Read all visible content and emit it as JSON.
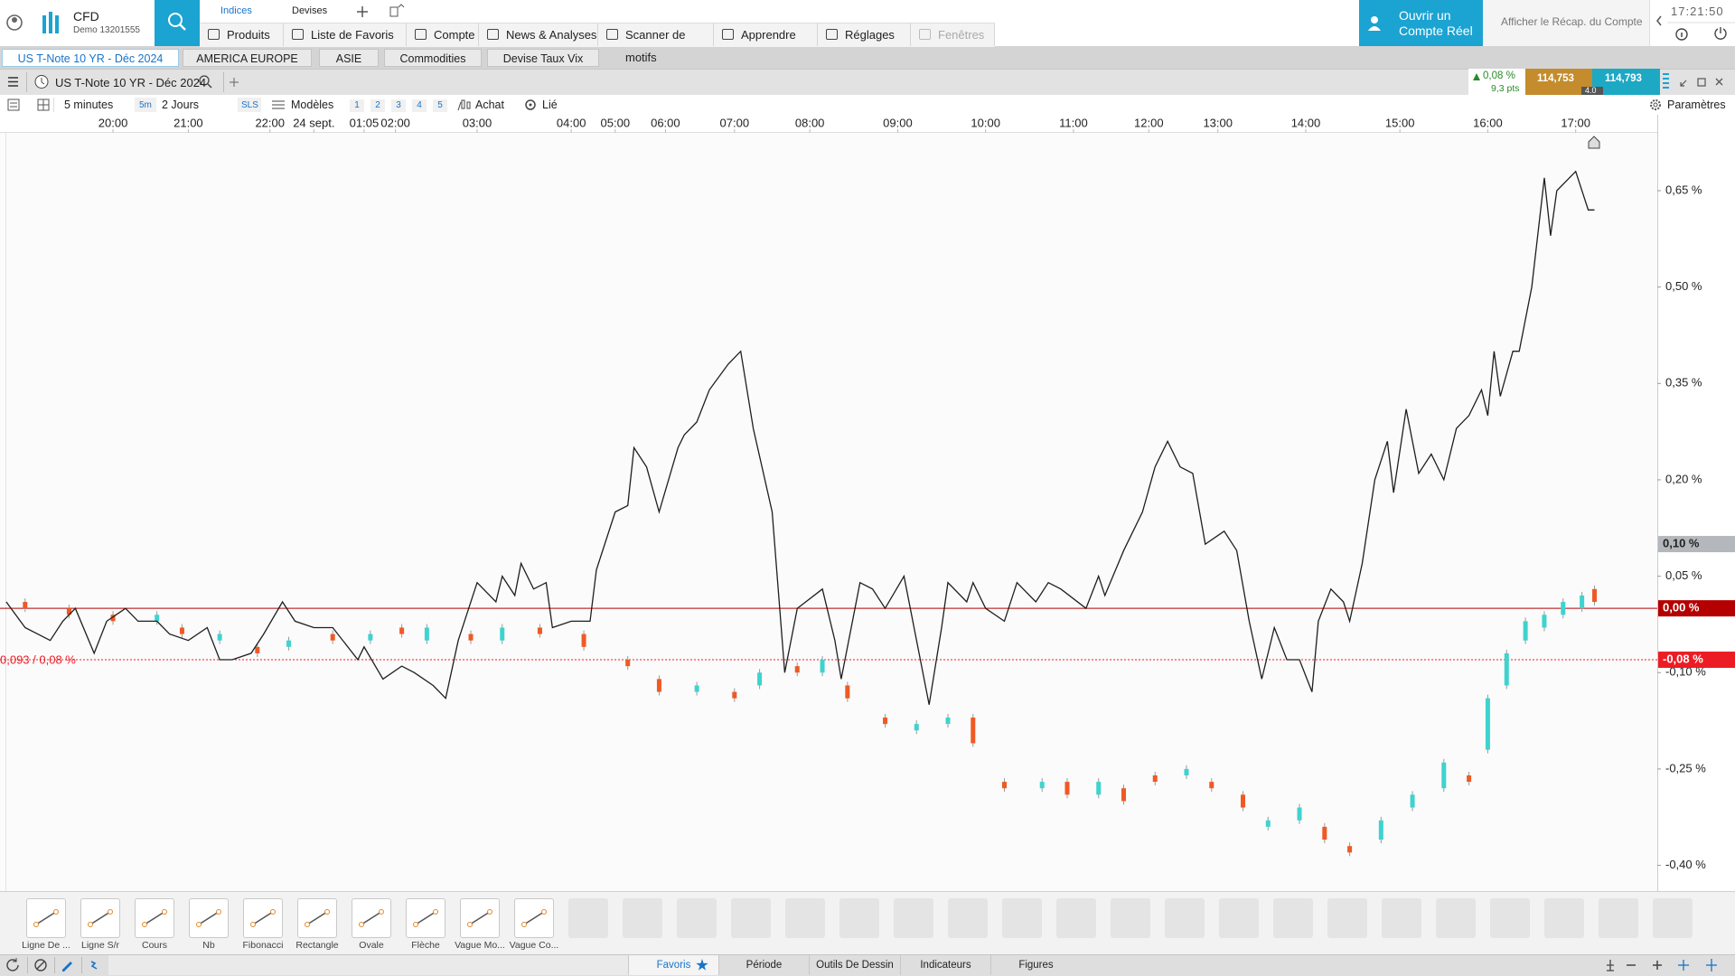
{
  "header": {
    "brand": "CFD",
    "account": "Demo 13201555",
    "tabs": [
      "Indices",
      "Devises"
    ],
    "menu": [
      "Produits",
      "Liste de Favoris",
      "Compte",
      "News & Analyses",
      "Scanner de motifs",
      "Apprendre",
      "Réglages",
      "Fenêtres"
    ],
    "open_account": [
      "Ouvrir un",
      "Compte Réel"
    ],
    "summary": "Afficher le Récap. du Compte",
    "clock": "17:21:50"
  },
  "workspace_tabs": [
    "US T-Note 10 YR - Déc 2024",
    "AMERICA EUROPE",
    "ASIE",
    "Commodities",
    "Devise Taux Vix"
  ],
  "instrument": {
    "name": "US T-Note 10 YR - Déc 2024",
    "change": "0,08 %",
    "change_pts": "9,3 pts",
    "bid": "114,753",
    "ask": "114,793",
    "spread": "4.0"
  },
  "toolbar": {
    "interval": "5 minutes",
    "interval_short": "5m",
    "range": "2 Jours",
    "sls": "SLS",
    "models": "Modèles",
    "layouts": [
      "1",
      "2",
      "3",
      "4",
      "5"
    ],
    "buy": "Achat",
    "linked": "Lié",
    "settings": "Paramètres"
  },
  "chart_data": {
    "type": "candlestick",
    "up_color": "#3ed3cf",
    "down_color": "#ef5a24",
    "x": [
      3,
      10,
      17,
      24,
      28,
      34,
      40,
      45,
      52,
      58,
      63,
      67,
      74,
      79,
      85,
      92,
      99,
      104,
      110,
      116,
      120,
      126,
      130,
      134,
      140,
      145,
      150,
      154,
      159,
      165,
      169,
      174,
      178,
      183,
      188,
      192,
      197,
      201,
      206,
      210,
      214,
      219,
      224,
      229,
      233,
      236,
      239,
      242,
      245,
      248,
      251,
      253
    ],
    "open": [
      0.01,
      0,
      -0.01,
      -0.02,
      -0.03,
      -0.05,
      -0.06,
      -0.06,
      -0.04,
      -0.05,
      -0.03,
      -0.05,
      -0.04,
      -0.05,
      -0.03,
      -0.04,
      -0.08,
      -0.11,
      -0.13,
      -0.13,
      -0.12,
      -0.09,
      -0.1,
      -0.12,
      -0.17,
      -0.19,
      -0.18,
      -0.17,
      -0.27,
      -0.28,
      -0.27,
      -0.29,
      -0.28,
      -0.26,
      -0.26,
      -0.27,
      -0.29,
      -0.34,
      -0.33,
      -0.34,
      -0.37,
      -0.36,
      -0.31,
      -0.28,
      -0.26,
      -0.22,
      -0.12,
      -0.05,
      -0.03,
      -0.01,
      0,
      0.03
    ],
    "close": [
      0,
      -0.01,
      -0.02,
      -0.01,
      -0.04,
      -0.04,
      -0.07,
      -0.05,
      -0.05,
      -0.04,
      -0.04,
      -0.03,
      -0.05,
      -0.03,
      -0.04,
      -0.06,
      -0.09,
      -0.13,
      -0.12,
      -0.14,
      -0.1,
      -0.1,
      -0.08,
      -0.14,
      -0.18,
      -0.18,
      -0.17,
      -0.21,
      -0.28,
      -0.27,
      -0.29,
      -0.27,
      -0.3,
      -0.27,
      -0.25,
      -0.28,
      -0.31,
      -0.33,
      -0.31,
      -0.36,
      -0.38,
      -0.33,
      -0.29,
      -0.24,
      -0.27,
      -0.14,
      -0.07,
      -0.02,
      -0.01,
      0.01,
      0.02,
      0.01
    ],
    "line": {
      "type": "line",
      "color": "#1e1e1e",
      "x": [
        0,
        3,
        5,
        7,
        9,
        11,
        14,
        16,
        19,
        21,
        24,
        26,
        29,
        32,
        34,
        36,
        39,
        41,
        44,
        46,
        49,
        52,
        56,
        57,
        60,
        63,
        65,
        68,
        70,
        72,
        75,
        78,
        79,
        81,
        82,
        84,
        86,
        87,
        90,
        93,
        94,
        97,
        99,
        100,
        102,
        104,
        107,
        108,
        110,
        112,
        115,
        117,
        119,
        122,
        124,
        126,
        130,
        132,
        133,
        136,
        138,
        140,
        143,
        145,
        147,
        149,
        150,
        153,
        154,
        156,
        159,
        161,
        164,
        166,
        168,
        172,
        174,
        175,
        178,
        181,
        183,
        185,
        187,
        189,
        191,
        194,
        196,
        198,
        200,
        202,
        204,
        206,
        208,
        209,
        211,
        213,
        214,
        216,
        218,
        220,
        221,
        223,
        225,
        227,
        229,
        231,
        233,
        235,
        236,
        237,
        238,
        240,
        241,
        243,
        245,
        246,
        247,
        250,
        252,
        253
      ],
      "values": [
        0.01,
        -0.03,
        -0.04,
        -0.05,
        -0.02,
        0,
        -0.07,
        -0.02,
        0,
        -0.02,
        -0.02,
        -0.04,
        -0.05,
        -0.03,
        -0.08,
        -0.08,
        -0.07,
        -0.04,
        0.01,
        -0.02,
        -0.03,
        -0.03,
        -0.08,
        -0.06,
        -0.11,
        -0.09,
        -0.1,
        -0.12,
        -0.14,
        -0.05,
        0.04,
        0.01,
        0.05,
        0.02,
        0.07,
        0.03,
        0.04,
        -0.03,
        -0.02,
        -0.02,
        0.06,
        0.15,
        0.16,
        0.25,
        0.22,
        0.15,
        0.25,
        0.27,
        0.29,
        0.34,
        0.38,
        0.4,
        0.28,
        0.15,
        -0.1,
        0,
        0.03,
        -0.05,
        -0.11,
        0.04,
        0.03,
        0,
        0.05,
        -0.05,
        -0.15,
        -0.03,
        0.04,
        0.01,
        0.04,
        0,
        -0.02,
        0.04,
        0.01,
        0.04,
        0.03,
        0,
        0.05,
        0.02,
        0.09,
        0.15,
        0.22,
        0.26,
        0.22,
        0.21,
        0.1,
        0.12,
        0.09,
        -0.02,
        -0.11,
        -0.03,
        -0.08,
        -0.08,
        -0.13,
        -0.02,
        0.03,
        0.01,
        -0.02,
        0.07,
        0.2,
        0.26,
        0.18,
        0.31,
        0.21,
        0.24,
        0.2,
        0.28,
        0.3,
        0.34,
        0.3,
        0.4,
        0.33,
        0.4,
        0.4,
        0.5,
        0.67,
        0.58,
        0.65,
        0.68,
        0.62,
        0.62
      ]
    },
    "xlim": [
      -1,
      263
    ],
    "ylim": [
      -0.44,
      0.74
    ],
    "xticks": [
      {
        "value": 17,
        "label": "20:00"
      },
      {
        "value": 29,
        "label": "21:00"
      },
      {
        "value": 42,
        "label": "22:00"
      },
      {
        "value": 49,
        "label": "24 sept."
      },
      {
        "value": 57,
        "label": "01:05"
      },
      {
        "value": 62,
        "label": "02:00"
      },
      {
        "value": 75,
        "label": "03:00"
      },
      {
        "value": 90,
        "label": "04:00"
      },
      {
        "value": 97,
        "label": "05:00"
      },
      {
        "value": 105,
        "label": "06:00"
      },
      {
        "value": 116,
        "label": "07:00"
      },
      {
        "value": 128,
        "label": "08:00"
      },
      {
        "value": 142,
        "label": "09:00"
      },
      {
        "value": 156,
        "label": "10:00"
      },
      {
        "value": 170,
        "label": "11:00"
      },
      {
        "value": 182,
        "label": "12:00"
      },
      {
        "value": 193,
        "label": "13:00"
      },
      {
        "value": 207,
        "label": "14:00"
      },
      {
        "value": 222,
        "label": "15:00"
      },
      {
        "value": 236,
        "label": "16:00"
      },
      {
        "value": 250,
        "label": "17:00"
      }
    ],
    "yticks": [
      {
        "value": 0.65,
        "label": "0,65 %"
      },
      {
        "value": 0.5,
        "label": "0,50 %"
      },
      {
        "value": 0.35,
        "label": "0,35 %"
      },
      {
        "value": 0.2,
        "label": "0,20 %"
      },
      {
        "value": 0.05,
        "label": "0,05 %"
      },
      {
        "value": -0.1,
        "label": "-0,10 %"
      },
      {
        "value": -0.25,
        "label": "-0,25 %"
      },
      {
        "value": -0.4,
        "label": "-0,40 %"
      }
    ],
    "markers": [
      {
        "value": 0.1,
        "label": "0,10 %",
        "color": "#b4b7bb"
      },
      {
        "value": 0,
        "label": "0,00 %",
        "color": "#b40000",
        "line": "solid"
      },
      {
        "value": -0.08,
        "label": "-0,08 %",
        "color": "#ec1c24",
        "line": "dotted",
        "note": "0,093 / 0,08 %"
      }
    ]
  },
  "drawing_tools": [
    "Ligne De ...",
    "Ligne S/r",
    "Cours",
    "Nb",
    "Fibonacci",
    "Rectangle",
    "Ovale",
    "Flèche",
    "Vague Mo...",
    "Vague Co..."
  ],
  "bottom_tabs": [
    "Favoris",
    "Période",
    "Outils De Dessin",
    "Indicateurs",
    "Figures"
  ]
}
